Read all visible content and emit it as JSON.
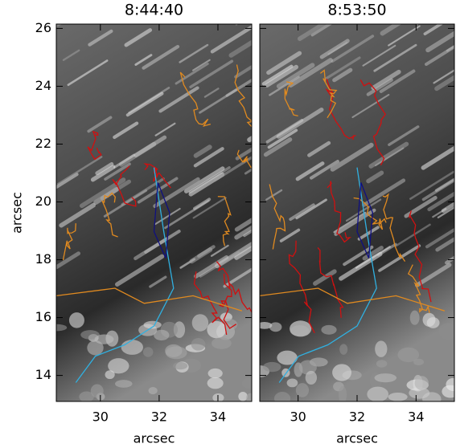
{
  "chart_data": [
    {
      "type": "image",
      "title": "8:44:40",
      "xlabel": "arcsec",
      "ylabel": "arcsec",
      "xlim": [
        28.5,
        35.15
      ],
      "ylim": [
        13.1,
        26.15
      ],
      "xticks": [
        30,
        32,
        34
      ],
      "yticks": [
        14,
        16,
        18,
        20,
        22,
        24,
        26
      ],
      "ytick_labels": true
    },
    {
      "type": "image",
      "title": "8:53:50",
      "xlabel": "arcsec",
      "xlim": [
        28.7,
        35.3
      ],
      "ylim": [
        13.1,
        26.15
      ],
      "xticks": [
        30,
        32,
        34
      ],
      "yticks": [
        14,
        16,
        18,
        20,
        22,
        24,
        26
      ],
      "ytick_labels": false
    }
  ]
}
